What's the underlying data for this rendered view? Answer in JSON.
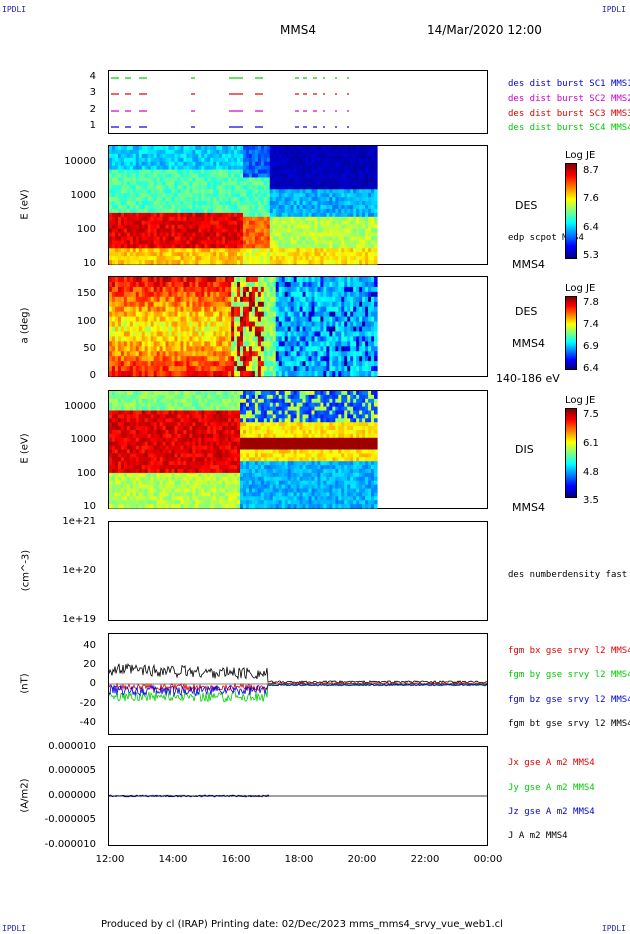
{
  "corners": {
    "tl": "IPDLI",
    "tr": "IPDLI",
    "bl": "IPDLI",
    "br": "IPDLI"
  },
  "header": {
    "spacecraft": "MMS4",
    "datetime": "14/Mar/2020 12:00"
  },
  "footer": {
    "text": "Produced by cl (IRAP)   Printing date: 02/Dec/2023   mms_mms4_srvy_vue_web1.cl"
  },
  "colors": {
    "red": "#e00000",
    "green": "#00cc00",
    "blue": "#0000dd",
    "magenta": "#cc00cc",
    "black": "#000000"
  },
  "x_ticks": [
    "12:00",
    "14:00",
    "16:00",
    "18:00",
    "20:00",
    "22:00",
    "00:00"
  ],
  "chart_data": [
    {
      "type": "line",
      "panel": "burst",
      "y_ticks": [
        "4",
        "3",
        "2",
        "1"
      ],
      "legend": [
        {
          "label": "des dist burst SC1 MMS1",
          "color": "#0000dd"
        },
        {
          "label": "des dist burst SC2 MMS2",
          "color": "#cc00cc"
        },
        {
          "label": "des dist burst SC3 MMS3",
          "color": "#e00000"
        },
        {
          "label": "des dist burst SC4 MMS4",
          "color": "#00cc00"
        }
      ]
    },
    {
      "type": "heatmap",
      "panel": "des-energy",
      "ylabel": "E (eV)",
      "y_ticks": [
        "10000",
        "1000",
        "100",
        "10"
      ],
      "ylog": true,
      "species": "DES",
      "overlay": "edp scpot MMS4",
      "sc": "MMS4",
      "colorbar": {
        "title": "Log JE",
        "ticks": [
          "8.7",
          "7.6",
          "6.4",
          "5.3"
        ]
      }
    },
    {
      "type": "heatmap",
      "panel": "des-pitch",
      "ylabel": "a (deg)",
      "y_ticks": [
        "150",
        "100",
        "50",
        "0"
      ],
      "species": "DES",
      "sc": "MMS4",
      "energy_range": "140-186 eV",
      "colorbar": {
        "title": "Log JE",
        "ticks": [
          "7.8",
          "7.4",
          "6.9",
          "6.4"
        ]
      }
    },
    {
      "type": "heatmap",
      "panel": "dis-energy",
      "ylabel": "E (eV)",
      "y_ticks": [
        "10000",
        "1000",
        "100",
        "10"
      ],
      "ylog": true,
      "species": "DIS",
      "sc": "MMS4",
      "colorbar": {
        "title": "Log JE",
        "ticks": [
          "7.5",
          "6.1",
          "4.8",
          "3.5"
        ]
      }
    },
    {
      "type": "line",
      "panel": "density",
      "ylabel": "(cm^-3)",
      "y_ticks": [
        "1e+21",
        "1e+20",
        "1e+19"
      ],
      "legend": [
        {
          "label": "des numberdensity fast M",
          "color": "#000000"
        }
      ]
    },
    {
      "type": "line",
      "panel": "fgm",
      "ylabel": "(nT)",
      "y_ticks": [
        "40",
        "20",
        "0",
        "-20",
        "-40"
      ],
      "ylim": [
        -48,
        48
      ],
      "legend": [
        {
          "label": "fgm bx gse srvy l2 MMS4",
          "color": "#e00000"
        },
        {
          "label": "fgm by gse srvy l2 MMS4",
          "color": "#00cc00"
        },
        {
          "label": "fgm bz gse srvy l2 MMS4",
          "color": "#0000dd"
        },
        {
          "label": "fgm bt gse srvy l2 MMS4",
          "color": "#000000"
        }
      ]
    },
    {
      "type": "line",
      "panel": "current",
      "ylabel": "(A/m2)",
      "y_ticks": [
        "0.000010",
        "0.000005",
        "0.000000",
        "-0.000005",
        "-0.000010"
      ],
      "ylim": [
        -1e-05,
        1e-05
      ],
      "legend": [
        {
          "label": "Jx gse A m2 MMS4",
          "color": "#e00000"
        },
        {
          "label": "Jy gse A m2 MMS4",
          "color": "#00cc00"
        },
        {
          "label": "Jz gse A m2 MMS4",
          "color": "#0000dd"
        },
        {
          "label": "J A m2 MMS4",
          "color": "#000000"
        }
      ]
    }
  ]
}
